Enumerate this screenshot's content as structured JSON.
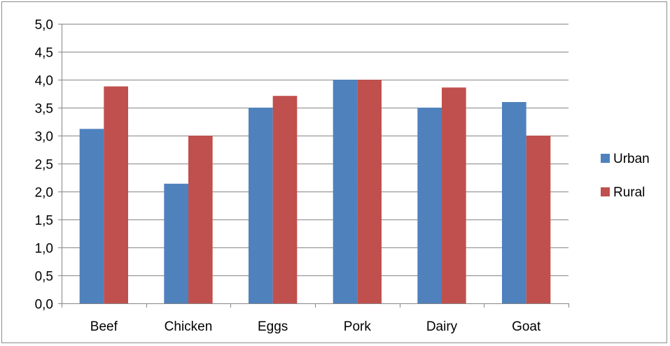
{
  "chart_data": {
    "type": "bar",
    "categories": [
      "Beef",
      "Chicken",
      "Eggs",
      "Pork",
      "Dairy",
      "Goat"
    ],
    "series": [
      {
        "name": "Urban",
        "values": [
          3.12,
          2.14,
          3.5,
          4.0,
          3.5,
          3.6
        ],
        "color": "#4f81bd"
      },
      {
        "name": "Rural",
        "values": [
          3.88,
          3.0,
          3.71,
          4.0,
          3.86,
          3.0
        ],
        "color": "#c0504d"
      }
    ],
    "y_ticks": [
      "0,0",
      "0,5",
      "1,0",
      "1,5",
      "2,0",
      "2,5",
      "3,0",
      "3,5",
      "4,0",
      "4,5",
      "5,0"
    ],
    "ylim": [
      0,
      5
    ],
    "y_step": 0.5,
    "grid": true,
    "legend_position": "right",
    "gridline_color": "#868686"
  }
}
